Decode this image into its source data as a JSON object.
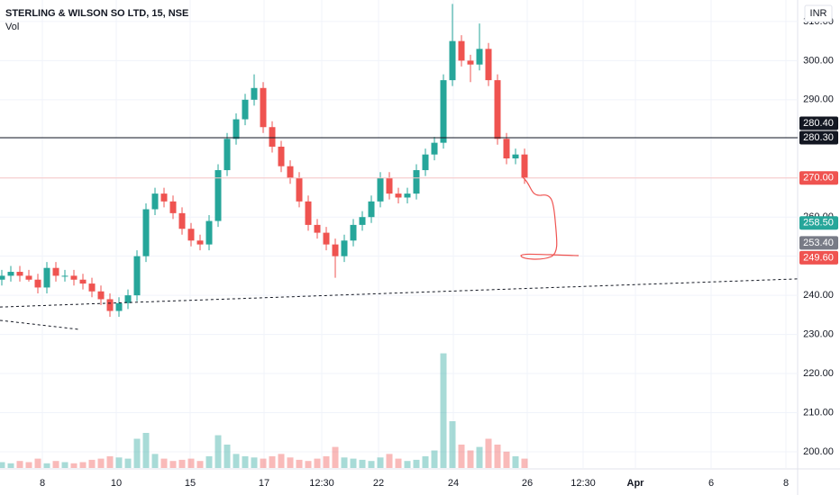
{
  "chart_data": {
    "type": "candlestick",
    "title": "STERLING & WILSON SO LTD, 15, NSE",
    "subtitle": "Vol",
    "currency": "INR",
    "up_color": "#26a69a",
    "down_color": "#ef5350",
    "open": [
      244,
      245,
      246,
      245,
      244,
      242,
      247,
      245,
      245,
      244,
      243,
      241,
      239,
      236,
      238,
      240,
      250,
      262,
      266,
      264,
      261,
      257,
      254,
      253,
      259,
      272,
      280,
      285,
      290,
      293,
      283,
      278,
      273,
      270,
      264,
      258,
      256,
      253,
      250,
      254,
      258,
      260,
      264,
      270,
      266,
      265,
      266,
      272,
      276,
      279,
      295,
      305,
      300,
      299,
      303,
      295,
      280,
      275,
      276
    ],
    "high": [
      246.5,
      247.5,
      247.5,
      246.5,
      245.5,
      248.5,
      248.5,
      246.5,
      246.5,
      245.5,
      244.5,
      242.5,
      240.5,
      239.5,
      241.5,
      251.5,
      263.5,
      267.5,
      267.5,
      265.5,
      262.5,
      258.5,
      255.5,
      260.5,
      273.5,
      281.5,
      286.5,
      291.5,
      296.5,
      294.5,
      284.5,
      279.5,
      274.5,
      271.5,
      265.5,
      259.5,
      257.5,
      254.5,
      255.5,
      259.5,
      261.5,
      265.5,
      271.5,
      271.5,
      267.5,
      267.5,
      273.5,
      277.5,
      280.5,
      296.5,
      314.5,
      306.5,
      301.5,
      309.5,
      304.5,
      296.5,
      281.5,
      277.5,
      277.5
    ],
    "low": [
      242.5,
      243.5,
      243.5,
      243.5,
      240.5,
      240.5,
      243.5,
      243.5,
      242.5,
      241.5,
      239.5,
      237.5,
      234.5,
      234.5,
      236.5,
      238.5,
      248.5,
      260.5,
      262.5,
      259.5,
      255.5,
      252.5,
      251.5,
      251.5,
      257.5,
      270.5,
      278.5,
      283.5,
      288.5,
      281.5,
      276.5,
      271.5,
      268.5,
      262.5,
      256.5,
      254.5,
      251.5,
      244.5,
      248.5,
      252.5,
      256.5,
      258.5,
      262.5,
      264.5,
      263.5,
      263.5,
      264.5,
      270.5,
      274.5,
      277.5,
      293.5,
      298.5,
      294.5,
      297.5,
      293.5,
      278.5,
      273.5,
      273.5,
      268.5
    ],
    "close": [
      245,
      246,
      245,
      244,
      242,
      247,
      245,
      245,
      244,
      243,
      241,
      239,
      236,
      238,
      240,
      250,
      262,
      266,
      264,
      261,
      257,
      254,
      253,
      259,
      272,
      280,
      285,
      290,
      293,
      283,
      278,
      273,
      270,
      264,
      258,
      256,
      253,
      250,
      254,
      258,
      260,
      264,
      270,
      266,
      265,
      266,
      272,
      276,
      279,
      295,
      305,
      300,
      299,
      303,
      295,
      280,
      275,
      276,
      270
    ],
    "volume": [
      5,
      4,
      6,
      5,
      8,
      4,
      6,
      5,
      4,
      5,
      7,
      8,
      10,
      9,
      8,
      25,
      30,
      12,
      8,
      6,
      7,
      8,
      6,
      10,
      28,
      20,
      12,
      10,
      9,
      8,
      10,
      12,
      9,
      7,
      6,
      8,
      10,
      18,
      9,
      8,
      7,
      6,
      9,
      12,
      8,
      6,
      7,
      10,
      15,
      98,
      40,
      20,
      15,
      18,
      25,
      20,
      14,
      10,
      8
    ],
    "vlim": [
      0,
      100
    ],
    "xlim": [
      -0.2,
      88.3
    ],
    "xticks": [
      {
        "value": 4.5,
        "label": "8"
      },
      {
        "value": 12.7,
        "label": "10"
      },
      {
        "value": 20.9,
        "label": "15"
      },
      {
        "value": 29.1,
        "label": "17"
      },
      {
        "value": 35.5,
        "label": "12:30"
      },
      {
        "value": 41.8,
        "label": "22"
      },
      {
        "value": 50.1,
        "label": "24"
      },
      {
        "value": 58.3,
        "label": "26"
      },
      {
        "value": 64.5,
        "label": "12:30"
      },
      {
        "value": 70.3,
        "label": "Apr"
      },
      {
        "value": 78.7,
        "label": "6"
      },
      {
        "value": 87.0,
        "label": "8"
      }
    ],
    "ylim": [
      195.85,
      315.5
    ],
    "yticks": [
      {
        "value": 200,
        "label": "200.00"
      },
      {
        "value": 210,
        "label": "210.00"
      },
      {
        "value": 220,
        "label": "220.00"
      },
      {
        "value": 230,
        "label": "230.00"
      },
      {
        "value": 240,
        "label": "240.00"
      },
      {
        "value": 250,
        "label": "250.00"
      },
      {
        "value": 260,
        "label": "260.00"
      },
      {
        "value": 270,
        "label": "270.00"
      },
      {
        "value": 280,
        "label": "280.00"
      },
      {
        "value": 290,
        "label": "290.00"
      },
      {
        "value": 300,
        "label": "300.00"
      },
      {
        "value": 310,
        "label": "310.00"
      }
    ],
    "grid": true,
    "hlines": [
      {
        "value": 280.3,
        "color": "#131722"
      },
      {
        "value": 270,
        "color": "#f7c5c5"
      }
    ],
    "trendlines": [
      {
        "x": [
          -0.2,
          88.3
        ],
        "y": [
          237,
          244.2
        ]
      },
      {
        "x": [
          -0.2,
          8.5
        ],
        "y": [
          233.6,
          231.3
        ]
      }
    ],
    "price_labels": [
      {
        "value": 280.4,
        "label": "280.40",
        "color": "#131722"
      },
      {
        "value": 280.3,
        "label": "280.30",
        "color": "#131722"
      },
      {
        "value": 270,
        "label": "270.00",
        "color": "#ef5350"
      },
      {
        "value": 258.5,
        "label": "258.50",
        "color": "#26a69a"
      },
      {
        "value": 253.4,
        "label": "253.40",
        "color": "#787b86"
      },
      {
        "value": 249.6,
        "label": "249.60",
        "color": "#ef5350"
      }
    ]
  }
}
